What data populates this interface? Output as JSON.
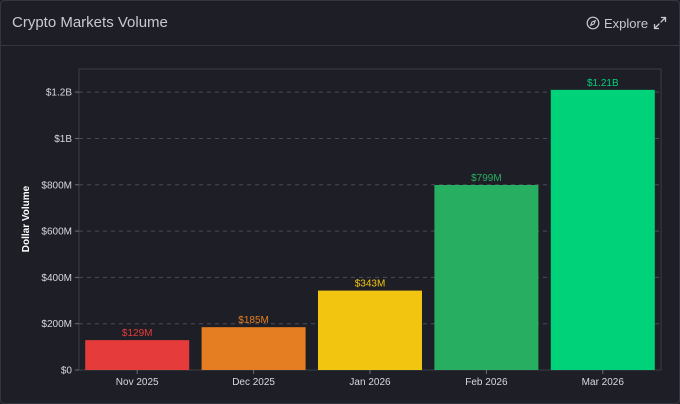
{
  "header": {
    "title": "Crypto Markets Volume",
    "explore_label": "Explore",
    "explore_icon": "compass-icon",
    "expand_icon": "expand-icon"
  },
  "chart_data": {
    "type": "bar",
    "title": "Crypto Markets Volume",
    "xlabel": "",
    "ylabel": "Dollar Volume",
    "categories": [
      "Nov 2025",
      "Dec 2025",
      "Jan 2026",
      "Feb 2026",
      "Mar 2026"
    ],
    "values": [
      129000000,
      185000000,
      343000000,
      799000000,
      1210000000
    ],
    "data_labels": [
      "$129M",
      "$185M",
      "$343M",
      "$799M",
      "$1.21B"
    ],
    "colors": [
      "#e53b3b",
      "#e57e22",
      "#f2c511",
      "#27ae60",
      "#00d27a"
    ],
    "ylim": [
      0,
      1300000000
    ],
    "yticks": [
      0,
      200000000,
      400000000,
      600000000,
      800000000,
      1000000000,
      1200000000
    ],
    "ytick_labels": [
      "$0",
      "$200M",
      "$400M",
      "$600M",
      "$800M",
      "$1B",
      "$1.2B"
    ],
    "grid": true
  }
}
